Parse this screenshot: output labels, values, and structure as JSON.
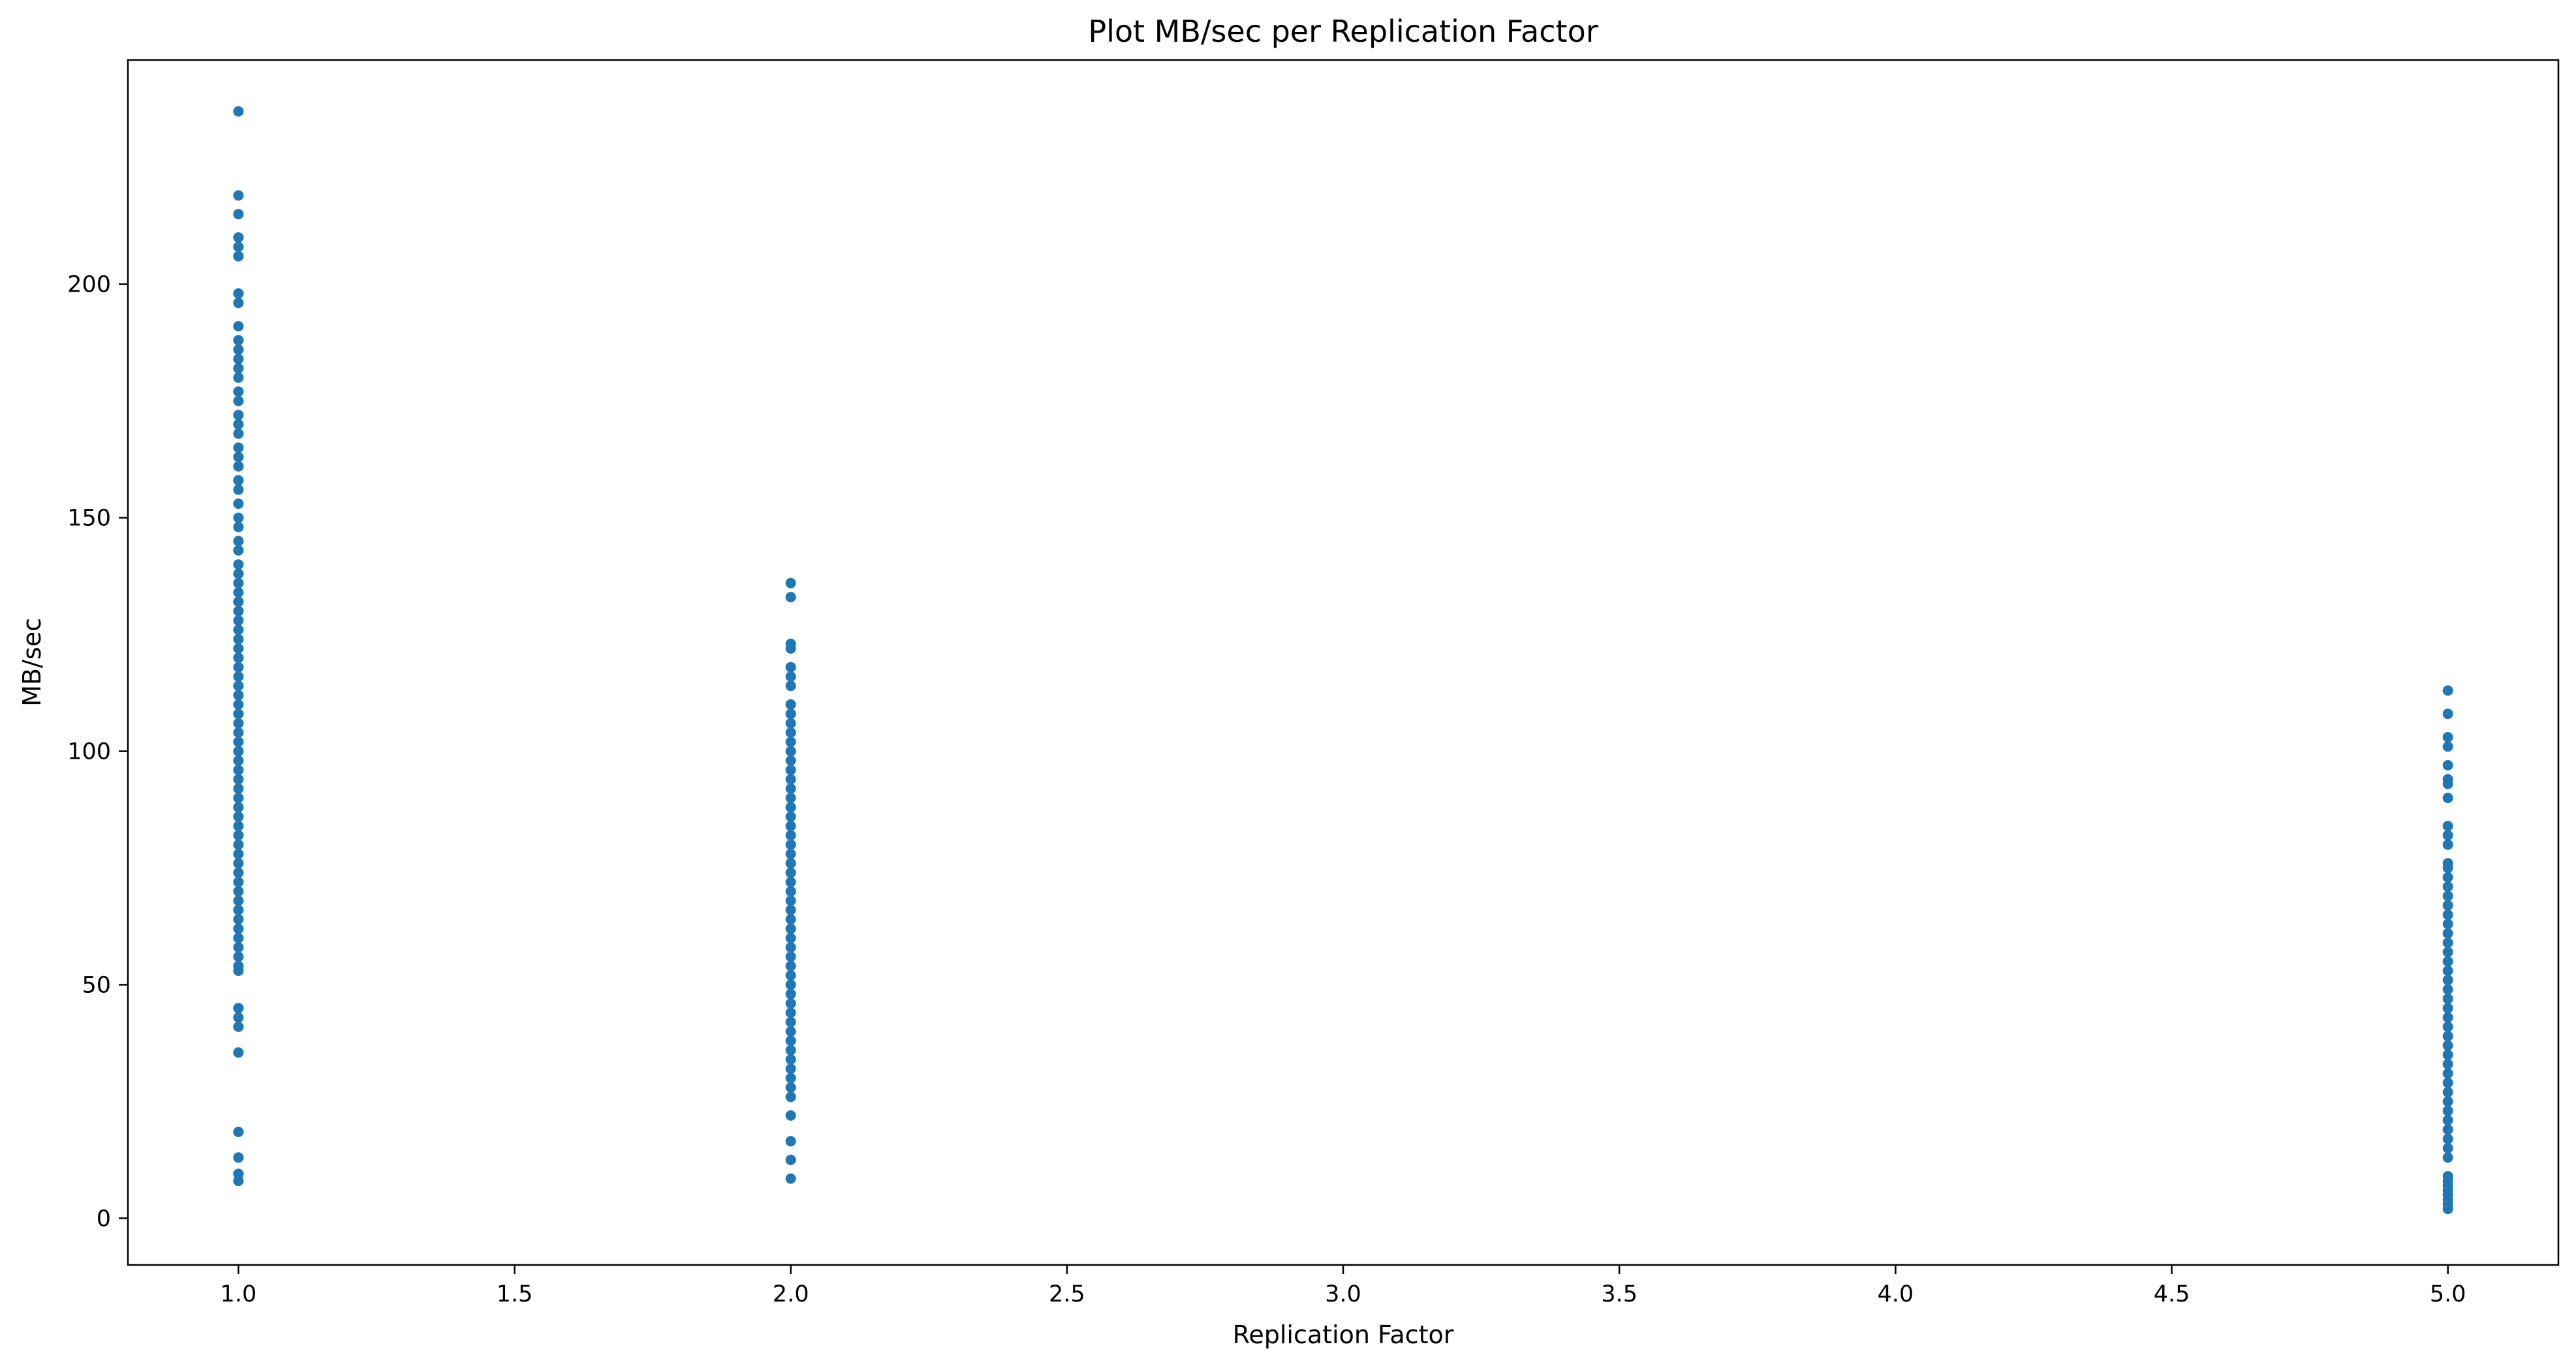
{
  "chart_data": {
    "type": "scatter",
    "title": "Plot MB/sec per Replication Factor",
    "xlabel": "Replication Factor",
    "ylabel": "MB/sec",
    "xlim": [
      0.8,
      5.2
    ],
    "ylim": [
      -10,
      248
    ],
    "xticks": [
      1.0,
      1.5,
      2.0,
      2.5,
      3.0,
      3.5,
      4.0,
      4.5,
      5.0
    ],
    "xtick_labels": [
      "1.0",
      "1.5",
      "2.0",
      "2.5",
      "3.0",
      "3.5",
      "4.0",
      "4.5",
      "5.0"
    ],
    "yticks": [
      0,
      50,
      100,
      150,
      200
    ],
    "ytick_labels": [
      "0",
      "50",
      "100",
      "150",
      "200"
    ],
    "grid": false,
    "legend": "none",
    "marker_color": "#1f77b4",
    "series": [
      {
        "x": 1.0,
        "y": [
          237,
          219,
          215,
          210,
          208,
          206,
          198,
          196,
          191,
          188,
          186,
          184,
          182,
          180,
          177,
          175,
          172,
          170,
          168,
          165,
          163,
          161,
          158,
          156,
          153,
          150,
          148,
          145,
          143,
          140,
          138,
          136,
          134,
          132,
          130,
          128,
          126,
          124,
          122,
          120,
          118,
          116,
          114,
          112,
          110,
          108,
          106,
          104,
          102,
          100,
          98,
          96,
          94,
          92,
          90,
          88,
          86,
          84,
          82,
          80,
          78,
          76,
          74,
          72,
          70,
          68,
          66,
          64,
          62,
          60,
          58,
          56,
          54,
          53,
          45,
          43,
          41,
          35.5,
          18.5,
          13,
          9.5,
          8
        ]
      },
      {
        "x": 2.0,
        "y": [
          136,
          133,
          123,
          122,
          118,
          116,
          114,
          110,
          108,
          106,
          104,
          102,
          100,
          98,
          96,
          94,
          92,
          90,
          88,
          86,
          84,
          82,
          80,
          78,
          76,
          74,
          72,
          70,
          68,
          66,
          64,
          62,
          60,
          58,
          56,
          54,
          52,
          50,
          48,
          46,
          44,
          42,
          40,
          38,
          36,
          34,
          32,
          30,
          28,
          26,
          22,
          16.5,
          12.5,
          8.5
        ]
      },
      {
        "x": 5.0,
        "y": [
          113,
          108,
          103,
          101,
          97,
          94,
          93,
          90,
          84,
          82,
          80,
          76,
          75,
          73,
          71,
          69,
          67,
          65,
          63,
          61,
          59,
          57,
          55,
          53,
          51,
          49,
          47,
          45,
          43,
          41,
          39,
          37,
          35,
          33,
          31,
          29,
          27,
          25,
          23,
          21,
          19,
          17,
          15,
          13,
          9,
          8,
          7,
          6,
          5,
          4,
          3,
          2
        ]
      }
    ]
  }
}
